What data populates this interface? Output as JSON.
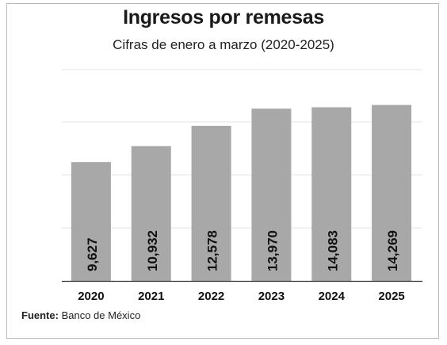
{
  "chart_data": {
    "type": "bar",
    "title": "Ingresos por remesas",
    "subtitle": "Cifras de enero a marzo (2020-2025)",
    "categories": [
      "2020",
      "2021",
      "2022",
      "2023",
      "2024",
      "2025"
    ],
    "values": [
      9627,
      10932,
      12578,
      13970,
      14083,
      14269
    ],
    "value_labels": [
      "9,627",
      "10,932",
      "12,578",
      "13,970",
      "14,083",
      "14,269"
    ],
    "bar_color": "#a8a8a8",
    "grid": true,
    "legend": "none"
  },
  "source": {
    "label": "Fuente:",
    "text": "Banco de México"
  }
}
